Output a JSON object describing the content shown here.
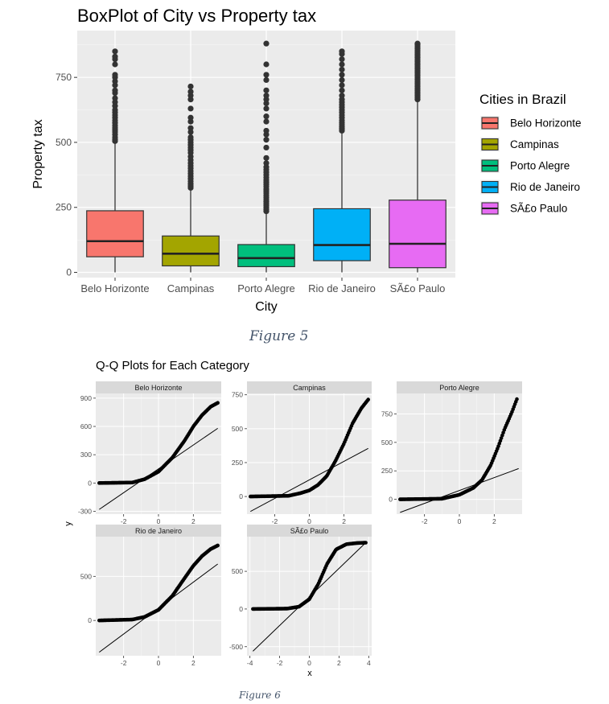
{
  "figure5": {
    "caption": "Figure 5",
    "chart_data": {
      "type": "boxplot",
      "title": "BoxPlot of City vs Property tax",
      "xlabel": "City",
      "ylabel": "Property tax",
      "ylim": [
        -20,
        930
      ],
      "y_ticks": [
        0,
        250,
        500,
        750
      ],
      "categories": [
        "Belo Horizonte",
        "Campinas",
        "Porto Alegre",
        "Rio de Janeiro",
        "SÃ£o Paulo"
      ],
      "legend": {
        "title": "Cities in Brazil",
        "position": "right",
        "entries": [
          "Belo Horizonte",
          "Campinas",
          "Porto Alegre",
          "Rio de Janeiro",
          "SÃ£o Paulo"
        ]
      },
      "grid": true,
      "series": [
        {
          "name": "Belo Horizonte",
          "color": "#f8766d",
          "whisker_low": 0,
          "q1": 60,
          "median": 120,
          "q3": 237,
          "whisker_high": 500,
          "outliers": [
            505,
            512,
            520,
            530,
            540,
            548,
            556,
            565,
            575,
            585,
            595,
            605,
            615,
            625,
            640,
            655,
            670,
            690,
            700,
            720,
            735,
            750,
            760,
            800,
            820,
            830,
            850
          ]
        },
        {
          "name": "Campinas",
          "color": "#a3a500",
          "whisker_low": 0,
          "q1": 25,
          "median": 72,
          "q3": 140,
          "whisker_high": 320,
          "outliers": [
            325,
            332,
            340,
            350,
            360,
            370,
            380,
            390,
            400,
            410,
            420,
            432,
            445,
            460,
            470,
            480,
            490,
            500,
            510,
            520,
            540,
            555,
            580,
            595,
            630,
            665,
            680,
            695,
            715
          ]
        },
        {
          "name": "Porto Alegre",
          "color": "#00bf7d",
          "whisker_low": 0,
          "q1": 22,
          "median": 55,
          "q3": 107,
          "whisker_high": 230,
          "outliers": [
            235,
            242,
            250,
            258,
            265,
            272,
            280,
            288,
            296,
            305,
            313,
            320,
            330,
            338,
            346,
            355,
            365,
            375,
            385,
            395,
            405,
            420,
            440,
            480,
            510,
            530,
            545,
            580,
            600,
            630,
            650,
            665,
            680,
            700,
            740,
            760,
            800,
            880
          ]
        },
        {
          "name": "Rio de Janeiro",
          "color": "#00b0f6",
          "whisker_low": 0,
          "q1": 45,
          "median": 105,
          "q3": 245,
          "whisker_high": 540,
          "outliers": [
            545,
            552,
            560,
            568,
            576,
            585,
            595,
            605,
            615,
            625,
            635,
            645,
            655,
            665,
            680,
            700,
            720,
            740,
            760,
            780,
            800,
            820,
            840,
            850
          ]
        },
        {
          "name": "SÃ£o Paulo",
          "color": "#e76bf3",
          "whisker_low": 0,
          "q1": 18,
          "median": 110,
          "q3": 278,
          "whisker_high": 660,
          "outliers": [
            665,
            672,
            679,
            686,
            693,
            700,
            707,
            714,
            721,
            728,
            735,
            742,
            749,
            756,
            763,
            770,
            777,
            784,
            791,
            798,
            805,
            812,
            819,
            826,
            833,
            840,
            847,
            854,
            861,
            868,
            875,
            880
          ]
        }
      ]
    }
  },
  "figure6": {
    "caption": "Figure 6",
    "title": "Q-Q Plots for Each Category",
    "xlabel": "x",
    "ylabel": "y",
    "chart_data": [
      {
        "type": "scatter",
        "title": "Belo Horizonte",
        "xlim": [
          -3.6,
          3.6
        ],
        "ylim": [
          -330,
          950
        ],
        "x_ticks": [
          -2,
          0,
          2
        ],
        "y_ticks": [
          -300,
          0,
          300,
          600,
          900
        ],
        "curve_knots": [
          [
            -3.4,
            0
          ],
          [
            -1.5,
            5
          ],
          [
            -0.8,
            40
          ],
          [
            0,
            120
          ],
          [
            0.8,
            270
          ],
          [
            1.5,
            450
          ],
          [
            2.0,
            600
          ],
          [
            2.5,
            720
          ],
          [
            3.0,
            810
          ],
          [
            3.4,
            850
          ]
        ],
        "ref_line": [
          [
            -3.4,
            -280
          ],
          [
            3.4,
            580
          ]
        ]
      },
      {
        "type": "scatter",
        "title": "Campinas",
        "xlim": [
          -3.6,
          3.6
        ],
        "ylim": [
          -130,
          760
        ],
        "x_ticks": [
          -2,
          0,
          2
        ],
        "y_ticks": [
          0,
          250,
          500,
          750
        ],
        "curve_knots": [
          [
            -3.4,
            0
          ],
          [
            -1.2,
            5
          ],
          [
            -0.5,
            25
          ],
          [
            0,
            45
          ],
          [
            0.5,
            85
          ],
          [
            1.0,
            150
          ],
          [
            1.5,
            260
          ],
          [
            2.0,
            390
          ],
          [
            2.5,
            540
          ],
          [
            3.0,
            650
          ],
          [
            3.4,
            715
          ]
        ],
        "ref_line": [
          [
            -3.4,
            -110
          ],
          [
            3.4,
            355
          ]
        ]
      },
      {
        "type": "scatter",
        "title": "Porto Alegre",
        "xlim": [
          -3.6,
          3.6
        ],
        "ylim": [
          -130,
          930
        ],
        "x_ticks": [
          -2,
          0,
          2
        ],
        "y_ticks": [
          0,
          250,
          500,
          750
        ],
        "curve_knots": [
          [
            -3.4,
            0
          ],
          [
            -1.0,
            5
          ],
          [
            0,
            40
          ],
          [
            0.8,
            100
          ],
          [
            1.3,
            170
          ],
          [
            1.8,
            300
          ],
          [
            2.2,
            450
          ],
          [
            2.6,
            620
          ],
          [
            3.0,
            760
          ],
          [
            3.3,
            880
          ]
        ],
        "ref_line": [
          [
            -3.4,
            -115
          ],
          [
            3.4,
            270
          ]
        ]
      },
      {
        "type": "scatter",
        "title": "Rio de Janeiro",
        "xlim": [
          -3.6,
          3.6
        ],
        "ylim": [
          -400,
          950
        ],
        "x_ticks": [
          -2,
          0,
          2
        ],
        "y_ticks": [
          0,
          500
        ],
        "curve_knots": [
          [
            -3.4,
            0
          ],
          [
            -1.5,
            10
          ],
          [
            -0.8,
            40
          ],
          [
            0,
            120
          ],
          [
            0.8,
            280
          ],
          [
            1.5,
            480
          ],
          [
            2.0,
            620
          ],
          [
            2.5,
            730
          ],
          [
            3.0,
            810
          ],
          [
            3.4,
            850
          ]
        ],
        "ref_line": [
          [
            -3.4,
            -360
          ],
          [
            3.4,
            640
          ]
        ]
      },
      {
        "type": "scatter",
        "title": "SÃ£o Paulo",
        "xlim": [
          -4.2,
          4.2
        ],
        "ylim": [
          -620,
          960
        ],
        "x_ticks": [
          -4,
          -2,
          0,
          2,
          4
        ],
        "y_ticks": [
          -500,
          0,
          500
        ],
        "curve_knots": [
          [
            -3.8,
            0
          ],
          [
            -1.5,
            5
          ],
          [
            -0.7,
            30
          ],
          [
            0,
            130
          ],
          [
            0.6,
            330
          ],
          [
            1.2,
            600
          ],
          [
            1.8,
            790
          ],
          [
            2.5,
            860
          ],
          [
            3.2,
            875
          ],
          [
            3.8,
            880
          ]
        ],
        "ref_line": [
          [
            -3.8,
            -560
          ],
          [
            3.8,
            880
          ]
        ]
      }
    ]
  }
}
